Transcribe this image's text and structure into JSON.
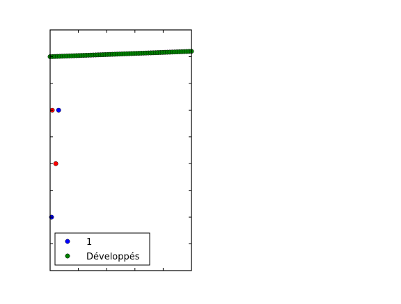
{
  "chart_data": {
    "type": "scatter",
    "title": "",
    "xlabel": "",
    "ylabel": "",
    "xlim": [
      0,
      100
    ],
    "ylim": [
      0,
      9
    ],
    "grid": false,
    "tick_labels_visible": false,
    "legend": {
      "placement": "lower-left"
    },
    "series": [
      {
        "name": "1",
        "color": "#0000ff",
        "in_legend": true,
        "points": [
          [
            1,
            2
          ],
          [
            6,
            6
          ]
        ]
      },
      {
        "name": "Développés",
        "color": "#008000",
        "in_legend": true,
        "line": {
          "x_start": 0,
          "x_end": 100,
          "y_start": 8.0,
          "y_end": 8.2,
          "count": 60
        }
      },
      {
        "name": "",
        "color": "#ff0000",
        "in_legend": false,
        "points": [
          [
            1.5,
            6
          ],
          [
            4,
            4
          ]
        ]
      }
    ]
  }
}
